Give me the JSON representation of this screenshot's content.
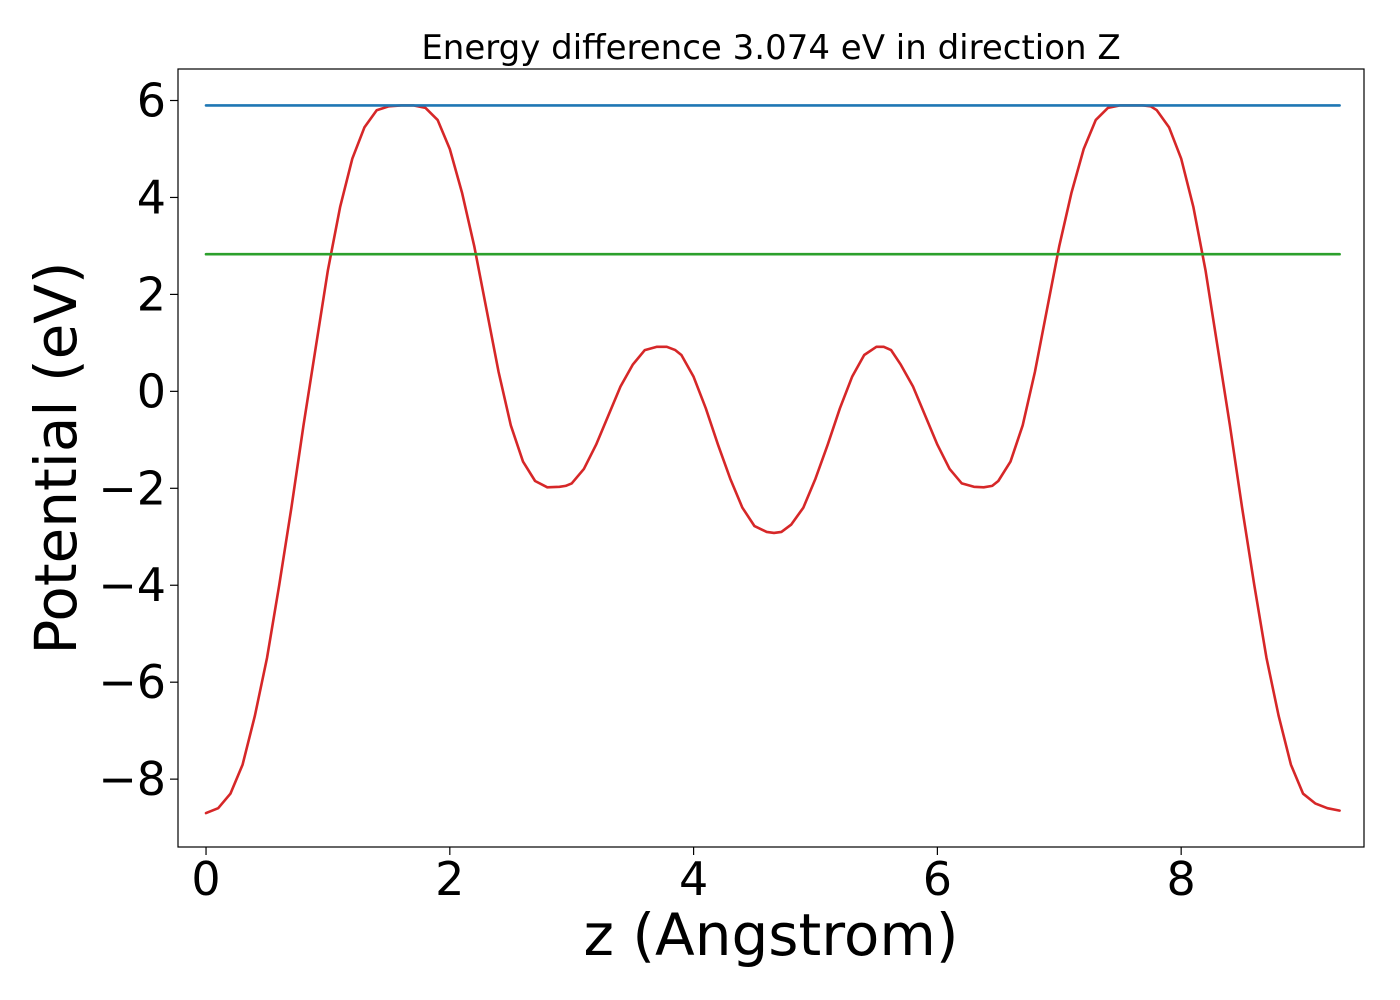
{
  "chart_data": {
    "type": "line",
    "title": "Energy difference 3.074 eV in direction Z",
    "xlabel": "z (Angstrom)",
    "ylabel": "Potential (eV)",
    "xlim": [
      -0.23,
      9.5
    ],
    "ylim": [
      -9.4,
      6.65
    ],
    "x_ticks": [
      0,
      2,
      4,
      6,
      8
    ],
    "x_tick_labels": [
      "0",
      "2",
      "4",
      "6",
      "8"
    ],
    "y_ticks": [
      6,
      4,
      2,
      0,
      -2,
      -4,
      -6,
      -8
    ],
    "y_tick_labels": [
      "6",
      "4",
      "2",
      "0",
      "−2",
      "−4",
      "−6",
      "−8"
    ],
    "grid": false,
    "series": [
      {
        "color": "#d62728",
        "x": [
          0.0,
          0.1,
          0.2,
          0.3,
          0.4,
          0.5,
          0.6,
          0.7,
          0.8,
          0.9,
          1.0,
          1.1,
          1.2,
          1.3,
          1.4,
          1.5,
          1.6,
          1.7,
          1.8,
          1.9,
          2.0,
          2.1,
          2.2,
          2.3,
          2.4,
          2.5,
          2.6,
          2.7,
          2.8,
          2.9,
          2.95,
          3.0,
          3.1,
          3.2,
          3.3,
          3.4,
          3.5,
          3.6,
          3.7,
          3.78,
          3.85,
          3.9,
          4.0,
          4.1,
          4.2,
          4.3,
          4.4,
          4.5,
          4.6,
          4.66,
          4.72,
          4.8,
          4.9,
          5.0,
          5.1,
          5.2,
          5.3,
          5.4,
          5.5,
          5.56,
          5.62,
          5.7,
          5.8,
          5.9,
          6.0,
          6.1,
          6.2,
          6.3,
          6.38,
          6.45,
          6.5,
          6.6,
          6.7,
          6.8,
          6.9,
          7.0,
          7.1,
          7.2,
          7.3,
          7.4,
          7.5,
          7.6,
          7.68,
          7.75,
          7.8,
          7.9,
          8.0,
          8.1,
          8.2,
          8.3,
          8.4,
          8.5,
          8.6,
          8.7,
          8.8,
          8.9,
          9.0,
          9.1,
          9.2,
          9.3
        ],
        "values": [
          -8.7,
          -8.6,
          -8.3,
          -7.7,
          -6.7,
          -5.5,
          -4.0,
          -2.4,
          -0.7,
          0.9,
          2.5,
          3.8,
          4.8,
          5.45,
          5.8,
          5.88,
          5.9,
          5.9,
          5.85,
          5.6,
          5.0,
          4.1,
          3.0,
          1.7,
          0.4,
          -0.7,
          -1.45,
          -1.85,
          -1.98,
          -1.97,
          -1.95,
          -1.9,
          -1.6,
          -1.1,
          -0.5,
          0.1,
          0.55,
          0.85,
          0.92,
          0.92,
          0.85,
          0.75,
          0.3,
          -0.35,
          -1.1,
          -1.8,
          -2.4,
          -2.78,
          -2.9,
          -2.92,
          -2.9,
          -2.75,
          -2.4,
          -1.8,
          -1.1,
          -0.35,
          0.3,
          0.75,
          0.92,
          0.92,
          0.85,
          0.55,
          0.1,
          -0.5,
          -1.1,
          -1.6,
          -1.9,
          -1.97,
          -1.98,
          -1.95,
          -1.85,
          -1.45,
          -0.7,
          0.4,
          1.7,
          3.0,
          4.1,
          5.0,
          5.6,
          5.85,
          5.9,
          5.9,
          5.9,
          5.88,
          5.8,
          5.45,
          4.8,
          3.8,
          2.5,
          0.9,
          -0.7,
          -2.4,
          -4.0,
          -5.5,
          -6.7,
          -7.7,
          -8.3,
          -8.5,
          -8.6,
          -8.65
        ]
      },
      {
        "color": "#1f77b4",
        "x": [
          0.0,
          9.3
        ],
        "values": [
          5.9,
          5.9
        ]
      },
      {
        "color": "#2ca02c",
        "x": [
          0.0,
          9.3
        ],
        "values": [
          2.83,
          2.83
        ]
      }
    ]
  }
}
